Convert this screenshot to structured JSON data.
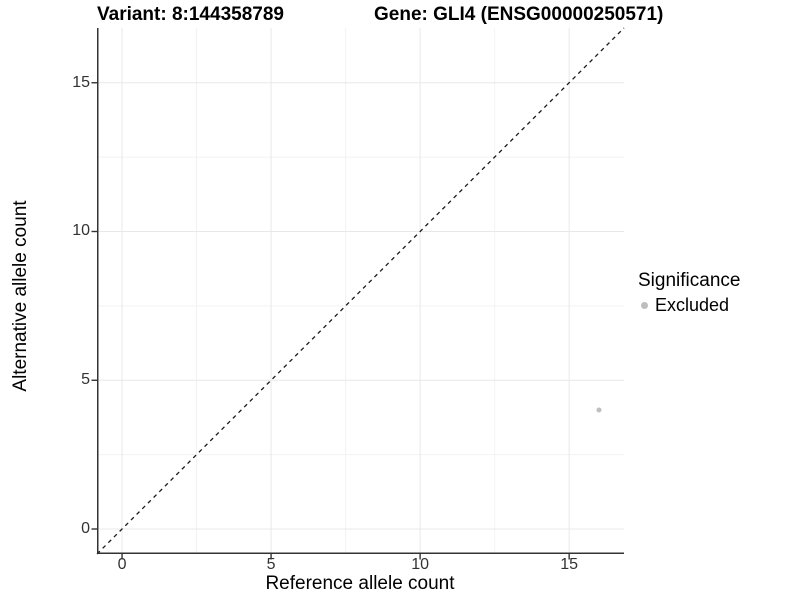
{
  "titles": {
    "left": "Variant: 8:144358789",
    "right": "Gene: GLI4 (ENSG00000250571)"
  },
  "chart_data": {
    "type": "scatter",
    "xlabel": "Reference allele count",
    "ylabel": "Alternative allele count",
    "xlim": [
      -0.84,
      16.84
    ],
    "ylim": [
      -0.84,
      16.84
    ],
    "x_major_ticks": [
      0,
      5,
      10,
      15
    ],
    "y_major_ticks": [
      0,
      5,
      10,
      15
    ],
    "x_minor_ticks": [
      2.5,
      7.5,
      12.5
    ],
    "y_minor_ticks": [
      2.5,
      7.5,
      12.5
    ],
    "grid": true,
    "points": [
      {
        "x": 16,
        "y": 4,
        "series": "Excluded"
      }
    ],
    "reference_line": {
      "type": "identity",
      "style": "dashed"
    },
    "legend": {
      "title": "Significance",
      "position": "right",
      "items": [
        {
          "label": "Excluded",
          "color": "#bebebe"
        }
      ]
    },
    "colors": {
      "point": "#bebebe",
      "grid_major": "#e8e8e8",
      "grid_minor": "#f2f2f2",
      "axis": "#333333",
      "reference_line": "#1a1a1a",
      "tick_text": "#333333"
    }
  }
}
